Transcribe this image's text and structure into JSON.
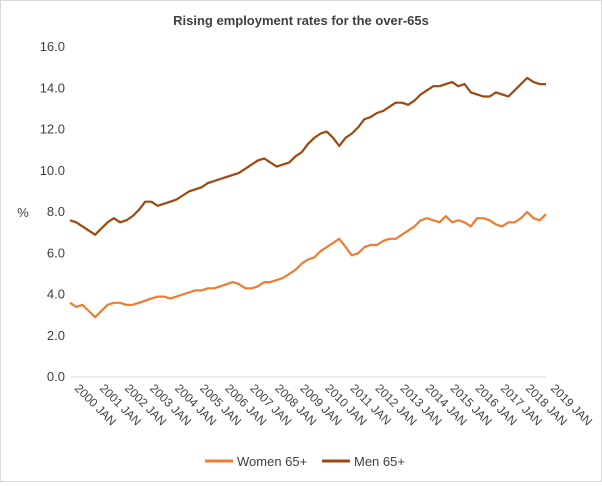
{
  "chart_data": {
    "type": "line",
    "title": "Rising employment rates for the over-65s",
    "ylabel": "%",
    "xlabel": "",
    "ylim": [
      0,
      16
    ],
    "y_ticks": [
      "0.0",
      "2.0",
      "4.0",
      "6.0",
      "8.0",
      "10.0",
      "12.0",
      "14.0",
      "16.0"
    ],
    "x_ticks": [
      "2000 JAN",
      "2001 JAN",
      "2002 JAN",
      "2003 JAN",
      "2004 JAN",
      "2005 JAN",
      "2006 JAN",
      "2007 JAN",
      "2008 JAN",
      "2009 JAN",
      "2010 JAN",
      "2011 JAN",
      "2012 JAN",
      "2013 JAN",
      "2014 JAN",
      "2015 JAN",
      "2016 JAN",
      "2017 JAN",
      "2018 JAN",
      "2019 JAN"
    ],
    "x_range": [
      "2000 JAN",
      "2019 JAN"
    ],
    "grid": false,
    "legend_position": "bottom",
    "series": [
      {
        "name": "Women 65+",
        "color": "#ED7D31",
        "points": [
          [
            "2000-01",
            3.6
          ],
          [
            "2000-04",
            3.4
          ],
          [
            "2000-07",
            3.5
          ],
          [
            "2000-10",
            3.2
          ],
          [
            "2001-01",
            2.9
          ],
          [
            "2001-04",
            3.2
          ],
          [
            "2001-07",
            3.5
          ],
          [
            "2001-10",
            3.6
          ],
          [
            "2002-01",
            3.6
          ],
          [
            "2002-04",
            3.5
          ],
          [
            "2002-07",
            3.5
          ],
          [
            "2002-10",
            3.6
          ],
          [
            "2003-01",
            3.7
          ],
          [
            "2003-04",
            3.8
          ],
          [
            "2003-07",
            3.9
          ],
          [
            "2003-10",
            3.9
          ],
          [
            "2004-01",
            3.8
          ],
          [
            "2004-04",
            3.9
          ],
          [
            "2004-07",
            4.0
          ],
          [
            "2004-10",
            4.1
          ],
          [
            "2005-01",
            4.2
          ],
          [
            "2005-04",
            4.2
          ],
          [
            "2005-07",
            4.3
          ],
          [
            "2005-10",
            4.3
          ],
          [
            "2006-01",
            4.4
          ],
          [
            "2006-04",
            4.5
          ],
          [
            "2006-07",
            4.6
          ],
          [
            "2006-10",
            4.5
          ],
          [
            "2007-01",
            4.3
          ],
          [
            "2007-04",
            4.3
          ],
          [
            "2007-07",
            4.4
          ],
          [
            "2007-10",
            4.6
          ],
          [
            "2008-01",
            4.6
          ],
          [
            "2008-04",
            4.7
          ],
          [
            "2008-07",
            4.8
          ],
          [
            "2008-10",
            5.0
          ],
          [
            "2009-01",
            5.2
          ],
          [
            "2009-04",
            5.5
          ],
          [
            "2009-07",
            5.7
          ],
          [
            "2009-10",
            5.8
          ],
          [
            "2010-01",
            6.1
          ],
          [
            "2010-04",
            6.3
          ],
          [
            "2010-07",
            6.5
          ],
          [
            "2010-10",
            6.7
          ],
          [
            "2011-01",
            6.3
          ],
          [
            "2011-04",
            5.9
          ],
          [
            "2011-07",
            6.0
          ],
          [
            "2011-10",
            6.3
          ],
          [
            "2012-01",
            6.4
          ],
          [
            "2012-04",
            6.4
          ],
          [
            "2012-07",
            6.6
          ],
          [
            "2012-10",
            6.7
          ],
          [
            "2013-01",
            6.7
          ],
          [
            "2013-04",
            6.9
          ],
          [
            "2013-07",
            7.1
          ],
          [
            "2013-10",
            7.3
          ],
          [
            "2014-01",
            7.6
          ],
          [
            "2014-04",
            7.7
          ],
          [
            "2014-07",
            7.6
          ],
          [
            "2014-10",
            7.5
          ],
          [
            "2015-01",
            7.8
          ],
          [
            "2015-04",
            7.5
          ],
          [
            "2015-07",
            7.6
          ],
          [
            "2015-10",
            7.5
          ],
          [
            "2016-01",
            7.3
          ],
          [
            "2016-04",
            7.7
          ],
          [
            "2016-07",
            7.7
          ],
          [
            "2016-10",
            7.6
          ],
          [
            "2017-01",
            7.4
          ],
          [
            "2017-04",
            7.3
          ],
          [
            "2017-07",
            7.5
          ],
          [
            "2017-10",
            7.5
          ],
          [
            "2018-01",
            7.7
          ],
          [
            "2018-04",
            8.0
          ],
          [
            "2018-07",
            7.7
          ],
          [
            "2018-10",
            7.6
          ],
          [
            "2019-01",
            7.9
          ]
        ]
      },
      {
        "name": "Men 65+",
        "color": "#9E480E",
        "points": [
          [
            "2000-01",
            7.6
          ],
          [
            "2000-04",
            7.5
          ],
          [
            "2000-07",
            7.3
          ],
          [
            "2000-10",
            7.1
          ],
          [
            "2001-01",
            6.9
          ],
          [
            "2001-04",
            7.2
          ],
          [
            "2001-07",
            7.5
          ],
          [
            "2001-10",
            7.7
          ],
          [
            "2002-01",
            7.5
          ],
          [
            "2002-04",
            7.6
          ],
          [
            "2002-07",
            7.8
          ],
          [
            "2002-10",
            8.1
          ],
          [
            "2003-01",
            8.5
          ],
          [
            "2003-04",
            8.5
          ],
          [
            "2003-07",
            8.3
          ],
          [
            "2003-10",
            8.4
          ],
          [
            "2004-01",
            8.5
          ],
          [
            "2004-04",
            8.6
          ],
          [
            "2004-07",
            8.8
          ],
          [
            "2004-10",
            9.0
          ],
          [
            "2005-01",
            9.1
          ],
          [
            "2005-04",
            9.2
          ],
          [
            "2005-07",
            9.4
          ],
          [
            "2005-10",
            9.5
          ],
          [
            "2006-01",
            9.6
          ],
          [
            "2006-04",
            9.7
          ],
          [
            "2006-07",
            9.8
          ],
          [
            "2006-10",
            9.9
          ],
          [
            "2007-01",
            10.1
          ],
          [
            "2007-04",
            10.3
          ],
          [
            "2007-07",
            10.5
          ],
          [
            "2007-10",
            10.6
          ],
          [
            "2008-01",
            10.4
          ],
          [
            "2008-04",
            10.2
          ],
          [
            "2008-07",
            10.3
          ],
          [
            "2008-10",
            10.4
          ],
          [
            "2009-01",
            10.7
          ],
          [
            "2009-04",
            10.9
          ],
          [
            "2009-07",
            11.3
          ],
          [
            "2009-10",
            11.6
          ],
          [
            "2010-01",
            11.8
          ],
          [
            "2010-04",
            11.9
          ],
          [
            "2010-07",
            11.6
          ],
          [
            "2010-10",
            11.2
          ],
          [
            "2011-01",
            11.6
          ],
          [
            "2011-04",
            11.8
          ],
          [
            "2011-07",
            12.1
          ],
          [
            "2011-10",
            12.5
          ],
          [
            "2012-01",
            12.6
          ],
          [
            "2012-04",
            12.8
          ],
          [
            "2012-07",
            12.9
          ],
          [
            "2012-10",
            13.1
          ],
          [
            "2013-01",
            13.3
          ],
          [
            "2013-04",
            13.3
          ],
          [
            "2013-07",
            13.2
          ],
          [
            "2013-10",
            13.4
          ],
          [
            "2014-01",
            13.7
          ],
          [
            "2014-04",
            13.9
          ],
          [
            "2014-07",
            14.1
          ],
          [
            "2014-10",
            14.1
          ],
          [
            "2015-01",
            14.2
          ],
          [
            "2015-04",
            14.3
          ],
          [
            "2015-07",
            14.1
          ],
          [
            "2015-10",
            14.2
          ],
          [
            "2016-01",
            13.8
          ],
          [
            "2016-04",
            13.7
          ],
          [
            "2016-07",
            13.6
          ],
          [
            "2016-10",
            13.6
          ],
          [
            "2017-01",
            13.8
          ],
          [
            "2017-04",
            13.7
          ],
          [
            "2017-07",
            13.6
          ],
          [
            "2017-10",
            13.9
          ],
          [
            "2018-01",
            14.2
          ],
          [
            "2018-04",
            14.5
          ],
          [
            "2018-07",
            14.3
          ],
          [
            "2018-10",
            14.2
          ],
          [
            "2019-01",
            14.2
          ]
        ]
      }
    ]
  }
}
